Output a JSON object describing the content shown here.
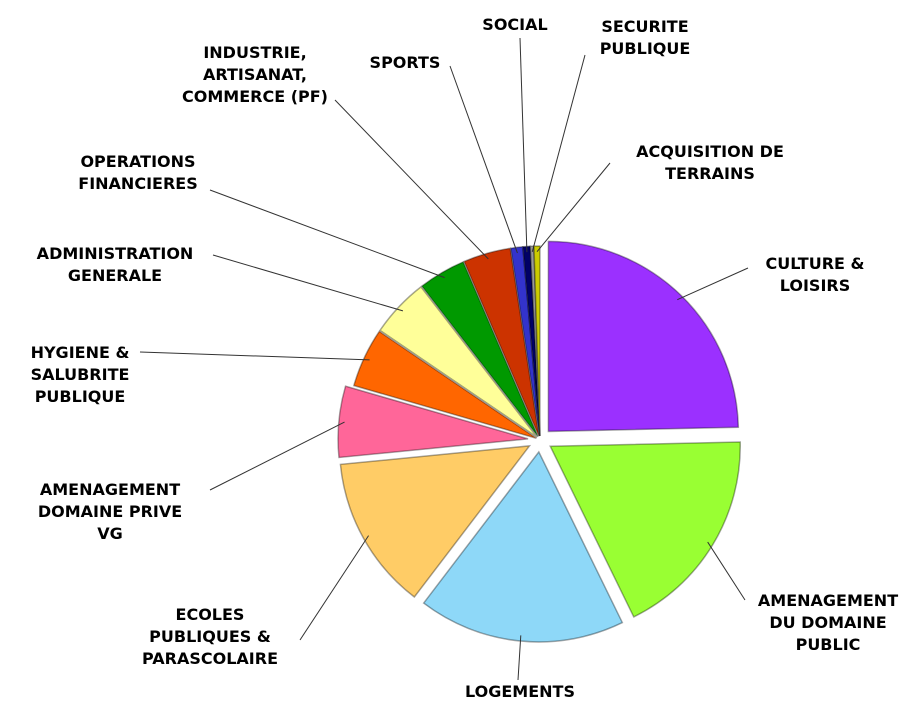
{
  "chart_data": {
    "type": "pie",
    "categories": [
      "CULTURE &\nLOISIRS",
      "AMENAGEMENT\nDU DOMAINE\nPUBLIC",
      "LOGEMENTS",
      "ECOLES\nPUBLIQUES &\nPARASCOLAIRE",
      "AMENAGEMENT\nDOMAINE PRIVE\nVG",
      "HYGIENE &\nSALUBRITE\nPUBLIQUE",
      "ADMINISTRATION\nGENERALE",
      "OPERATIONS\nFINANCIERES",
      "INDUSTRIE,\nARTISANAT,\nCOMMERCE (PF)",
      "SPORTS",
      "SOCIAL",
      "SECURITE\nPUBLIQUE",
      "ACQUISITION DE\nTERRAINS"
    ],
    "values": [
      24.5,
      18,
      17.5,
      13,
      6,
      5,
      5,
      4,
      4,
      1,
      0.6,
      0.3,
      0.5
    ],
    "colors": [
      "#9b30ff",
      "#99ff33",
      "#8ed8f8",
      "#ffcc66",
      "#ff6699",
      "#ff6600",
      "#ffff99",
      "#009900",
      "#cc3300",
      "#3333cc",
      "#000066",
      "#999999",
      "#cccc00"
    ]
  }
}
